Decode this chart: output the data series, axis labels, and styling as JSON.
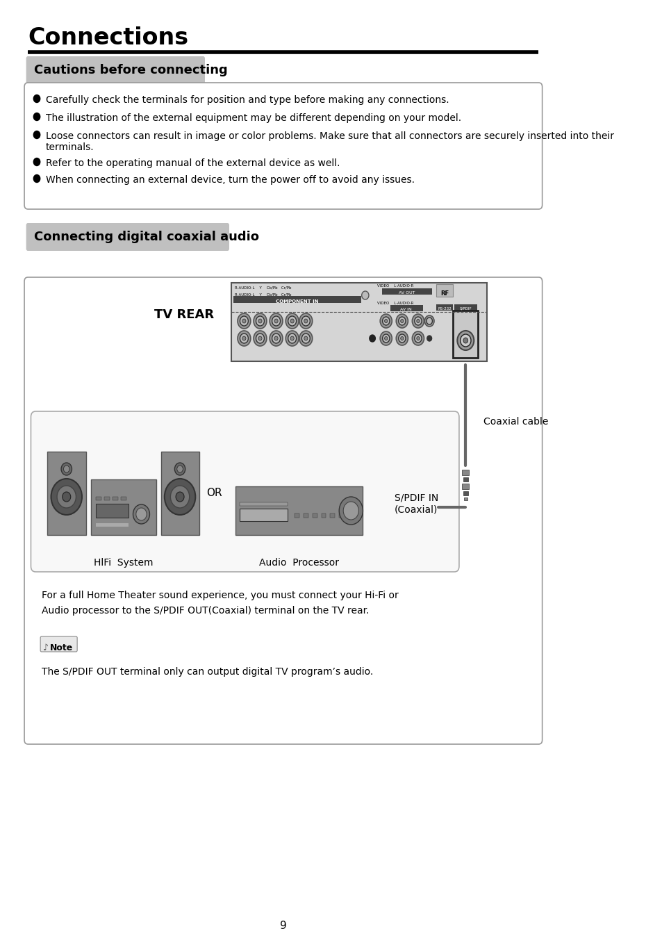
{
  "page_bg": "#ffffff",
  "title": "Connections",
  "section1_label": "Cautions before connecting",
  "section2_label": "Connecting digital coaxial audio",
  "section_label_bg": "#c0c0c0",
  "bullet_points": [
    "Carefully check the terminals for position and type before making any connections.",
    "The illustration of the external equipment may be different depending on your model.",
    "Loose connectors can result in image or color problems. Make sure that all connectors are securely inserted into their\nterminals.",
    "Refer to the operating manual of the external device as well.",
    "When connecting an external device, turn the power off to avoid any issues."
  ],
  "tv_rear_label": "TV REAR",
  "coaxial_cable_label": "Coaxial cable",
  "spdif_label": "S/PDIF IN\n(Coaxial)",
  "hifi_label": "HlFi  System",
  "audio_label": "Audio  Processor",
  "or_label": "OR",
  "description_text": "For a full Home Theater sound experience, you must connect your Hi-Fi or\nAudio processor to the S/PDIF OUT(Coaxial) terminal on the TV rear.",
  "note_text": "The S/PDIF OUT terminal only can output digital TV program’s audio.",
  "page_number": "9"
}
